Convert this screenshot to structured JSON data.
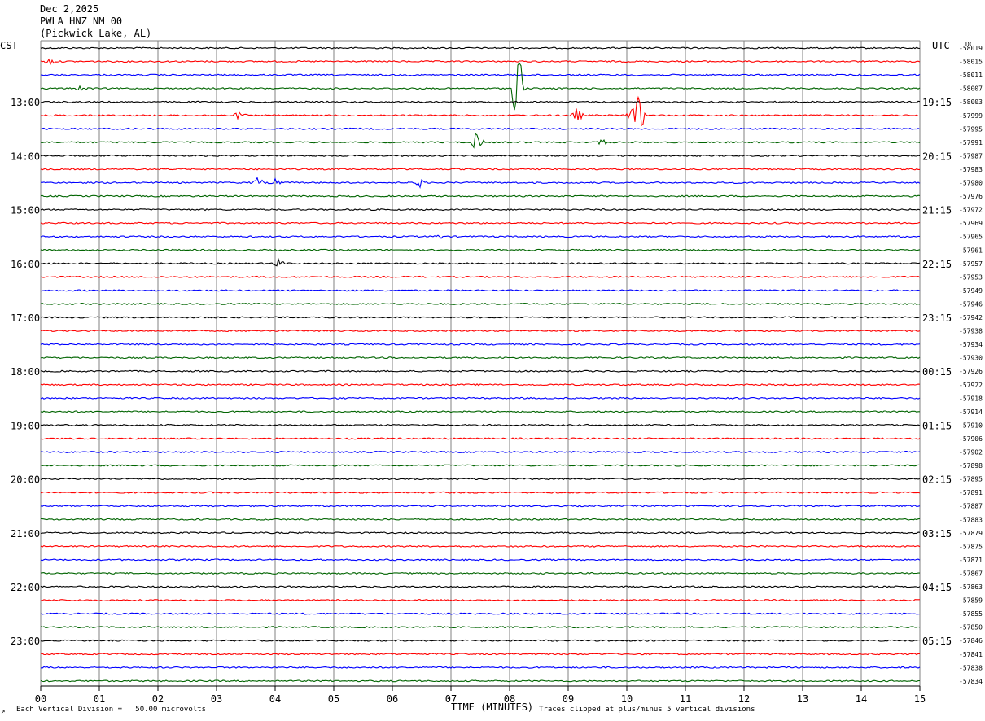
{
  "header": {
    "date": "Dec 2,2025",
    "station": "PWLA HNZ NM 00",
    "location": "(Pickwick Lake, AL)"
  },
  "axes": {
    "left_label": "CST",
    "right_label": "UTC",
    "dc_label": "DC",
    "x_title": "TIME (MINUTES)"
  },
  "footer": {
    "scale_note": "Each Vertical Division =   50.00 microvolts",
    "clip_note": "Traces clipped at plus/minus 5 vertical divisions",
    "corner_mark": "↗"
  },
  "colors": {
    "trace_cycle": [
      "#000000",
      "#ff0000",
      "#0000ff",
      "#006400"
    ],
    "grid": "#808080"
  },
  "chart_data": {
    "type": "line",
    "title": "PWLA HNZ NM 00",
    "xlabel": "TIME (MINUTES)",
    "x_ticks": [
      "00",
      "01",
      "02",
      "03",
      "04",
      "05",
      "06",
      "07",
      "08",
      "09",
      "10",
      "11",
      "12",
      "13",
      "14",
      "15"
    ],
    "xlim": [
      0,
      15
    ],
    "row_count": 48,
    "left_time_labels": [
      "13:00",
      "14:00",
      "15:00",
      "16:00",
      "17:00",
      "18:00",
      "19:00",
      "20:00",
      "21:00",
      "22:00",
      "23:00"
    ],
    "right_time_labels": [
      "19:15",
      "20:15",
      "21:15",
      "22:15",
      "23:15",
      "00:15",
      "01:15",
      "02:15",
      "03:15",
      "04:15",
      "05:15"
    ],
    "dc_offsets": [
      "-58019",
      "-58015",
      "-58011",
      "-58007",
      "-58003",
      "-57999",
      "-57995",
      "-57991",
      "-57987",
      "-57983",
      "-57980",
      "-57976",
      "-57972",
      "-57969",
      "-57965",
      "-57961",
      "-57957",
      "-57953",
      "-57949",
      "-57946",
      "-57942",
      "-57938",
      "-57934",
      "-57930",
      "-57926",
      "-57922",
      "-57918",
      "-57914",
      "-57910",
      "-57906",
      "-57902",
      "-57898",
      "-57895",
      "-57891",
      "-57887",
      "-57883",
      "-57879",
      "-57875",
      "-57871",
      "-57867",
      "-57863",
      "-57859",
      "-57855",
      "-57850",
      "-57846",
      "-57841",
      "-57838",
      "-57834"
    ],
    "events": [
      {
        "row": 1,
        "minute": 0.15,
        "amplitude": 4
      },
      {
        "row": 3,
        "minute": 0.7,
        "amplitude": 4
      },
      {
        "row": 3,
        "minute": 8.15,
        "amplitude": 75
      },
      {
        "row": 5,
        "minute": 3.4,
        "amplitude": 5
      },
      {
        "row": 5,
        "minute": 9.15,
        "amplitude": 9
      },
      {
        "row": 5,
        "minute": 10.1,
        "amplitude": 8
      },
      {
        "row": 5,
        "minute": 10.2,
        "amplitude": 28
      },
      {
        "row": 7,
        "minute": 7.45,
        "amplitude": 14
      },
      {
        "row": 7,
        "minute": 9.6,
        "amplitude": 4
      },
      {
        "row": 10,
        "minute": 3.7,
        "amplitude": 6
      },
      {
        "row": 10,
        "minute": 4.0,
        "amplitude": 5
      },
      {
        "row": 10,
        "minute": 6.45,
        "amplitude": 6
      },
      {
        "row": 14,
        "minute": 6.8,
        "amplitude": 2
      },
      {
        "row": 16,
        "minute": 4.05,
        "amplitude": 5
      }
    ],
    "scale": "Each Vertical Division =   50.00 microvolts"
  }
}
